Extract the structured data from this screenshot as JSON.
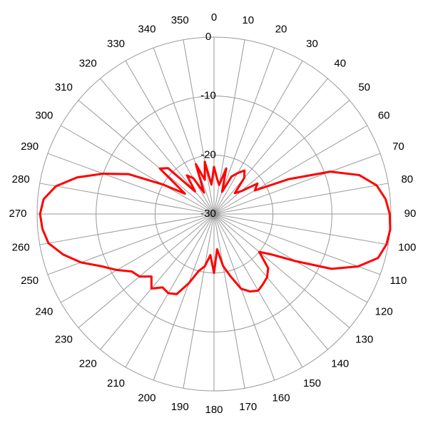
{
  "chart_data": {
    "type": "polar",
    "x": [
      0,
      5,
      10,
      15,
      20,
      25,
      30,
      35,
      40,
      45,
      50,
      55,
      60,
      65,
      70,
      75,
      80,
      85,
      90,
      95,
      100,
      105,
      110,
      115,
      120,
      125,
      130,
      135,
      140,
      145,
      150,
      155,
      160,
      165,
      170,
      175,
      180,
      185,
      190,
      195,
      200,
      205,
      210,
      215,
      220,
      225,
      230,
      235,
      240,
      245,
      250,
      255,
      260,
      265,
      270,
      275,
      280,
      285,
      290,
      295,
      300,
      305,
      310,
      315,
      320,
      325,
      330,
      335,
      340,
      345,
      350,
      355
    ],
    "series": [
      {
        "color": "#ff0000",
        "values": [
          -22,
          -24,
          -25,
          -22,
          -26,
          -23,
          -22,
          -21,
          -22,
          -25,
          -24,
          -21,
          -22,
          -16,
          -9,
          -4.5,
          -2,
          -0.8,
          -0.2,
          0,
          -0.3,
          -1.2,
          -4,
          -8,
          -14,
          -18,
          -20,
          -17,
          -16,
          -15.5,
          -15,
          -15.5,
          -16.5,
          -19,
          -21,
          -24,
          -20,
          -23,
          -21,
          -20,
          -17.5,
          -15,
          -14.5,
          -14.8,
          -13.5,
          -15,
          -13.5,
          -13,
          -11,
          -9,
          -6,
          -3.5,
          -1.5,
          -0.8,
          -0.5,
          -1,
          -2.8,
          -6,
          -10,
          -14,
          -20,
          -24,
          -18,
          -19,
          -25,
          -22,
          -23,
          -26,
          -21,
          -24,
          -21,
          -25
        ]
      }
    ],
    "ylim": [
      -30,
      0
    ],
    "yticks": [
      0,
      -10,
      -20,
      -30
    ],
    "xticks": [
      0,
      10,
      20,
      30,
      40,
      50,
      60,
      70,
      80,
      90,
      100,
      110,
      120,
      130,
      140,
      150,
      160,
      170,
      180,
      190,
      200,
      210,
      220,
      230,
      240,
      250,
      260,
      270,
      280,
      290,
      300,
      310,
      320,
      330,
      340,
      350
    ],
    "grid": true
  }
}
